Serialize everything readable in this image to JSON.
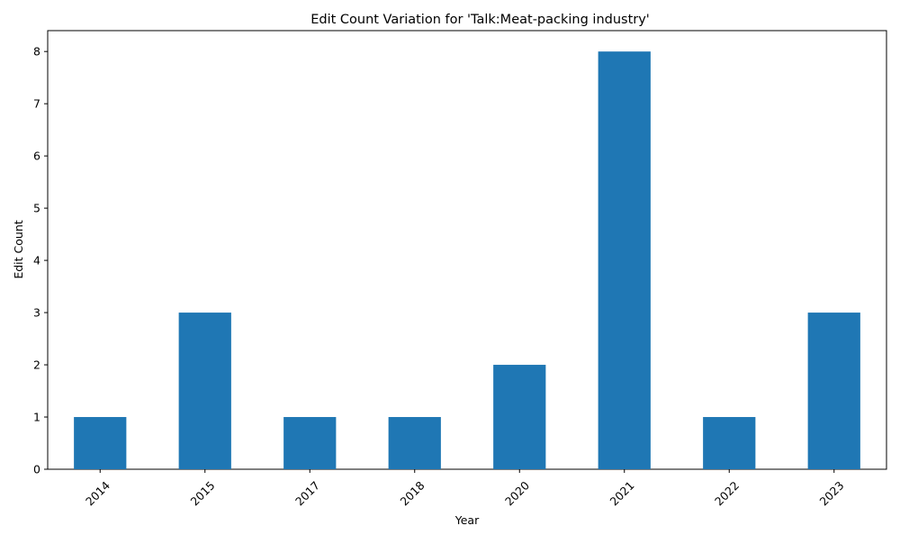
{
  "chart_data": {
    "type": "bar",
    "title": "Edit Count Variation for 'Talk:Meat-packing industry'",
    "xlabel": "Year",
    "ylabel": "Edit Count",
    "categories": [
      "2014",
      "2015",
      "2017",
      "2018",
      "2020",
      "2021",
      "2022",
      "2023"
    ],
    "values": [
      1,
      3,
      1,
      1,
      2,
      8,
      1,
      3
    ],
    "ylim": [
      0,
      8.4
    ],
    "yticks": [
      0,
      1,
      2,
      3,
      4,
      5,
      6,
      7,
      8
    ],
    "xtick_rotation_deg": 45,
    "grid": false,
    "legend": "none",
    "bar_color": "#1f77b4"
  }
}
